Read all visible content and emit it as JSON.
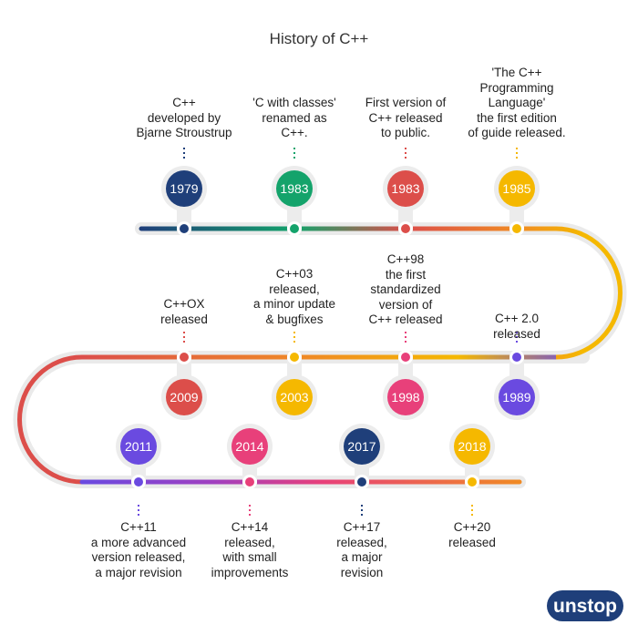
{
  "title": "History of C++",
  "logo_text": "unstop",
  "colors": {
    "navy": "#1f3f7a",
    "green": "#14a36b",
    "red": "#dc4e4a",
    "yellow": "#f5b800",
    "purple": "#6a4ae0",
    "pink": "#e8407a",
    "track_outline": "#eaeaea"
  },
  "events": [
    {
      "year": "1979",
      "desc": [
        "C++",
        "developed by",
        "Bjarne Stroustrup"
      ],
      "color": "navy"
    },
    {
      "year": "1983",
      "desc": [
        "'C with classes'",
        "renamed as",
        "C++."
      ],
      "color": "green"
    },
    {
      "year": "1983",
      "desc": [
        "First version of",
        "C++ released",
        "to public."
      ],
      "color": "red"
    },
    {
      "year": "1985",
      "desc": [
        "'The C++",
        "Programming",
        "Language'",
        "the first edition",
        "of guide released."
      ],
      "color": "yellow"
    },
    {
      "year": "1989",
      "desc": [
        "C++ 2.0",
        "released"
      ],
      "color": "purple"
    },
    {
      "year": "1998",
      "desc": [
        "C++98",
        "the first",
        "standardized",
        "version of",
        "C++ released"
      ],
      "color": "pink"
    },
    {
      "year": "2003",
      "desc": [
        "C++03",
        "released,",
        "a minor update",
        "& bugfixes"
      ],
      "color": "yellow"
    },
    {
      "year": "2009",
      "desc": [
        "C++OX",
        "released"
      ],
      "color": "red"
    },
    {
      "year": "2011",
      "desc": [
        "C++11",
        "a more advanced",
        "version released,",
        "a major revision"
      ],
      "color": "purple"
    },
    {
      "year": "2014",
      "desc": [
        "C++14",
        "released,",
        "with small",
        "improvements"
      ],
      "color": "pink"
    },
    {
      "year": "2017",
      "desc": [
        "C++17",
        "released,",
        "a major",
        "revision"
      ],
      "color": "navy"
    },
    {
      "year": "2018",
      "desc": [
        "C++20",
        "released"
      ],
      "color": "yellow"
    }
  ]
}
